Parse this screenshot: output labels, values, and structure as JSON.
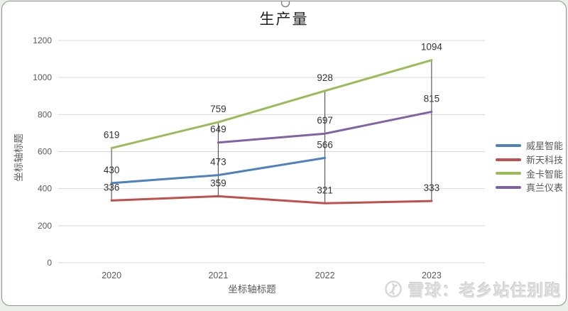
{
  "page": {
    "title": "生产量",
    "watermark": {
      "text": "雪球：老乡站住别跑",
      "color": "#dddddd",
      "logo": "xueqiu-circle-logo"
    }
  },
  "chart_data": {
    "type": "line",
    "title": "生产量",
    "categories": [
      "2020",
      "2021",
      "2022",
      "2023"
    ],
    "series": [
      {
        "name": "威星智能",
        "color": "#4F81BD",
        "values": [
          430,
          473,
          566,
          null
        ]
      },
      {
        "name": "新天科技",
        "color": "#C0504D",
        "values": [
          336,
          359,
          321,
          333
        ]
      },
      {
        "name": "金卡智能",
        "color": "#9BBB59",
        "values": [
          619,
          759,
          928,
          1094
        ]
      },
      {
        "name": "真兰仪表",
        "color": "#8064A2",
        "values": [
          null,
          649,
          697,
          815
        ]
      }
    ],
    "xlabel": "坐标轴标题",
    "ylabel": "坐标轴标题",
    "ylim": [
      0,
      1200
    ],
    "ytick_step": 200,
    "grid": "horizontal-only",
    "gridline_color": "#d9d9d9",
    "tick_label_color": "#595959",
    "axis_title_color": "#595959",
    "data_labels": true,
    "data_label_color": "#333333",
    "high_low_lines": true,
    "high_low_line_color": "#3f3f3f",
    "legend_position": "right"
  }
}
